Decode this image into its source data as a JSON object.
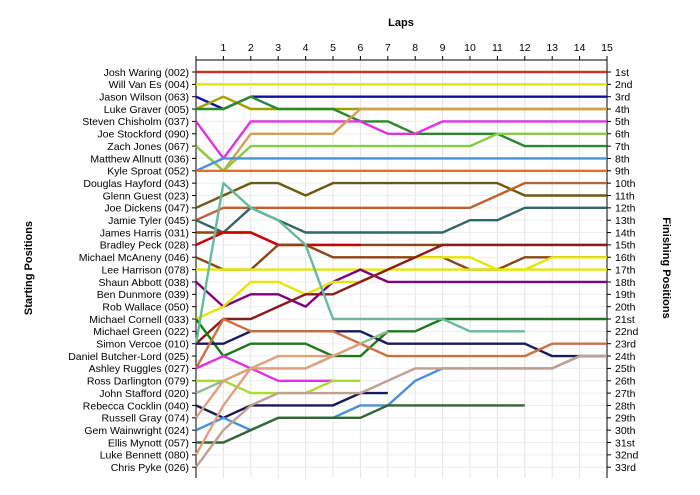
{
  "chart_data": {
    "type": "line",
    "title": "",
    "xlabel_top": "Laps",
    "ylabel_left": "Starting Positions",
    "ylabel_right": "Finishing Positions",
    "laps": [
      1,
      2,
      3,
      4,
      5,
      6,
      7,
      8,
      9,
      10,
      11,
      12,
      13,
      14,
      15
    ],
    "grid": true,
    "y_inverted": true,
    "drivers": [
      "Josh Waring (002)",
      "Will Van Es (004)",
      "Jason Wilson (063)",
      "Luke Graver (005)",
      "Steven Chisholm (037)",
      "Joe Stockford (090)",
      "Zach Jones (067)",
      "Matthew Allnutt (036)",
      "Kyle Sproat (052)",
      "Douglas Hayford (043)",
      "Glenn Guest (023)",
      "Joe Dickens (047)",
      "Jamie Tyler (045)",
      "James Harris (031)",
      "Bradley Peck (028)",
      "Michael McAneny (046)",
      "Lee Harrison (078)",
      "Shaun Abbott (038)",
      "Ben Dunmore (039)",
      "Rob Wallace (050)",
      "Michael Cornell (033)",
      "Michael Green (022)",
      "Simon Vercoe (010)",
      "Daniel Butcher-Lord (025)",
      "Ashley Ruggles (027)",
      "Ross Darlington (079)",
      "John Stafford (020)",
      "Rebecca Cocklin (040)",
      "Russell Gray (074)",
      "Gem Wainwright (024)",
      "Ellis Mynott (057)",
      "Luke Bennett (080)",
      "Chris Pyke (026)"
    ],
    "finishing_positions": [
      "1st",
      "2nd",
      "3rd",
      "4th",
      "5th",
      "6th",
      "7th",
      "8th",
      "9th",
      "10th",
      "11th",
      "12th",
      "13th",
      "14th",
      "15th",
      "16th",
      "17th",
      "18th",
      "19th",
      "20th",
      "21st",
      "22nd",
      "23rd",
      "24th",
      "25th",
      "26th",
      "27th",
      "28th",
      "29th",
      "30th",
      "31st",
      "32nd",
      "33rd"
    ],
    "series": [
      {
        "color": "#c0392b",
        "positions": [
          1,
          1,
          1,
          1,
          1,
          1,
          1,
          1,
          1,
          1,
          1,
          1,
          1,
          1,
          1,
          1
        ]
      },
      {
        "color": "#e6e600",
        "positions": [
          2,
          2,
          2,
          2,
          2,
          2,
          2,
          2,
          2,
          2,
          2,
          2,
          2,
          2,
          2,
          2
        ]
      },
      {
        "color": "#1010a0",
        "positions": [
          3,
          4,
          3,
          3,
          3,
          3,
          3,
          3,
          3,
          3,
          3,
          3,
          3,
          3,
          3,
          3
        ]
      },
      {
        "color": "#a0a000",
        "positions": [
          4,
          3,
          4,
          4,
          4,
          4,
          4,
          4,
          4,
          4,
          4,
          4,
          4,
          4,
          4,
          4
        ]
      },
      {
        "color": "#2a8a2a",
        "positions": [
          4,
          4,
          3,
          4,
          4,
          4,
          5,
          5,
          6,
          6,
          6,
          6,
          7,
          7,
          7,
          7
        ]
      },
      {
        "color": "#e033e0",
        "positions": [
          5,
          8,
          5,
          5,
          5,
          5,
          5,
          6,
          6,
          5,
          5,
          5,
          5,
          5,
          5,
          5
        ]
      },
      {
        "color": "#d4a050",
        "positions": [
          7,
          9,
          6,
          6,
          6,
          6,
          4,
          4,
          4,
          4,
          4,
          4,
          4,
          4,
          4,
          4
        ]
      },
      {
        "color": "#88cc44",
        "positions": [
          7,
          9,
          7,
          7,
          7,
          7,
          7,
          7,
          7,
          7,
          7,
          6,
          6,
          6,
          6,
          6
        ]
      },
      {
        "color": "#4a90d9",
        "positions": [
          9,
          8,
          8,
          8,
          8,
          8,
          8,
          8,
          8,
          8,
          8,
          8,
          8,
          8,
          8,
          8
        ]
      },
      {
        "color": "#e07030",
        "positions": [
          9,
          9,
          9,
          9,
          9,
          9,
          9,
          9,
          9,
          9,
          9,
          9,
          9,
          9,
          9,
          9
        ]
      },
      {
        "color": "#6b5a10",
        "positions": [
          12,
          11,
          10,
          10,
          11,
          10,
          10,
          10,
          10,
          10,
          10,
          10,
          11,
          11,
          11,
          11
        ]
      },
      {
        "color": "#c06030",
        "positions": [
          13,
          12,
          12,
          12,
          12,
          12,
          12,
          12,
          12,
          12,
          12,
          11,
          10,
          10,
          10,
          10
        ]
      },
      {
        "color": "#336666",
        "positions": [
          13,
          14,
          12,
          13,
          14,
          14,
          14,
          14,
          14,
          14,
          13,
          13,
          12,
          12,
          12,
          12
        ]
      },
      {
        "color": "#8b4513",
        "positions": [
          14,
          14,
          14,
          15,
          15,
          15,
          15,
          15,
          15,
          15,
          15,
          15,
          15,
          15,
          15,
          15
        ]
      },
      {
        "color": "#cc0000",
        "positions": [
          15,
          14,
          14,
          15,
          15,
          15,
          15
        ]
      },
      {
        "color": "#8b4513",
        "positions": [
          16,
          17,
          17,
          15,
          15,
          16,
          16,
          16,
          16,
          16,
          17,
          17,
          16,
          16,
          16,
          16
        ]
      },
      {
        "color": "#e6e600",
        "positions": [
          17,
          17,
          17,
          17,
          17,
          17,
          17,
          17,
          16,
          16,
          16,
          17,
          17,
          16,
          16,
          16
        ]
      },
      {
        "color": "#800080",
        "positions": [
          18,
          20,
          19,
          19,
          20,
          18,
          17,
          18,
          18,
          18,
          18,
          18,
          18,
          18,
          18,
          18
        ]
      },
      {
        "color": "#e6e600",
        "positions": [
          21,
          20,
          18,
          18,
          19,
          18,
          18,
          17,
          17,
          17,
          17,
          17,
          17,
          17,
          17,
          17
        ]
      },
      {
        "color": "#8b1a1a",
        "positions": [
          23,
          21,
          21,
          20,
          19,
          19,
          18,
          17,
          16,
          15,
          15,
          15,
          15,
          15,
          15,
          15
        ]
      },
      {
        "color": "#1a7a1a",
        "positions": [
          21,
          24,
          23,
          23,
          23,
          24,
          24,
          22,
          22,
          21,
          21,
          21,
          21,
          21,
          21,
          21
        ]
      },
      {
        "color": "#66bb99",
        "positions": [
          23,
          10,
          12,
          13,
          15,
          21,
          21,
          21,
          21,
          21,
          22,
          22,
          22
        ]
      },
      {
        "color": "#1a1a5a",
        "positions": [
          23,
          23,
          22,
          22,
          22,
          22,
          22,
          23,
          23,
          23,
          23,
          23,
          23,
          24,
          24,
          24
        ]
      },
      {
        "color": "#cc7040",
        "positions": [
          25,
          21,
          22,
          22,
          22,
          22,
          23,
          24,
          24,
          24,
          24,
          24,
          24,
          23,
          23,
          23
        ]
      },
      {
        "color": "#e033e0",
        "positions": [
          25,
          24,
          25,
          26,
          26,
          26
        ]
      },
      {
        "color": "#aadd33",
        "positions": [
          26,
          26,
          27,
          27,
          27,
          26,
          26
        ]
      },
      {
        "color": "#8fbc8f",
        "positions": [
          27,
          26,
          25,
          25,
          25,
          24,
          23,
          22
        ]
      },
      {
        "color": "#1a1a5a",
        "positions": [
          28,
          29,
          28,
          28,
          28,
          28,
          27,
          27
        ]
      },
      {
        "color": "#e0a080",
        "positions": [
          29,
          26,
          25,
          24,
          24,
          24,
          23
        ]
      },
      {
        "color": "#4a90d9",
        "positions": [
          30,
          29,
          30,
          29,
          29,
          29,
          28,
          28,
          26,
          25,
          25,
          25,
          25,
          25,
          24,
          24
        ]
      },
      {
        "color": "#336633",
        "positions": [
          31,
          31,
          30,
          29,
          29,
          29,
          29,
          28,
          28,
          28,
          28,
          28,
          28
        ]
      },
      {
        "color": "#e0a080",
        "positions": [
          32,
          28,
          25,
          25,
          25,
          24,
          23
        ]
      },
      {
        "color": "#c0a090",
        "positions": [
          33,
          30,
          28,
          27,
          27,
          27,
          27,
          26,
          25,
          25,
          25,
          25,
          25,
          25,
          24,
          24
        ]
      }
    ]
  }
}
